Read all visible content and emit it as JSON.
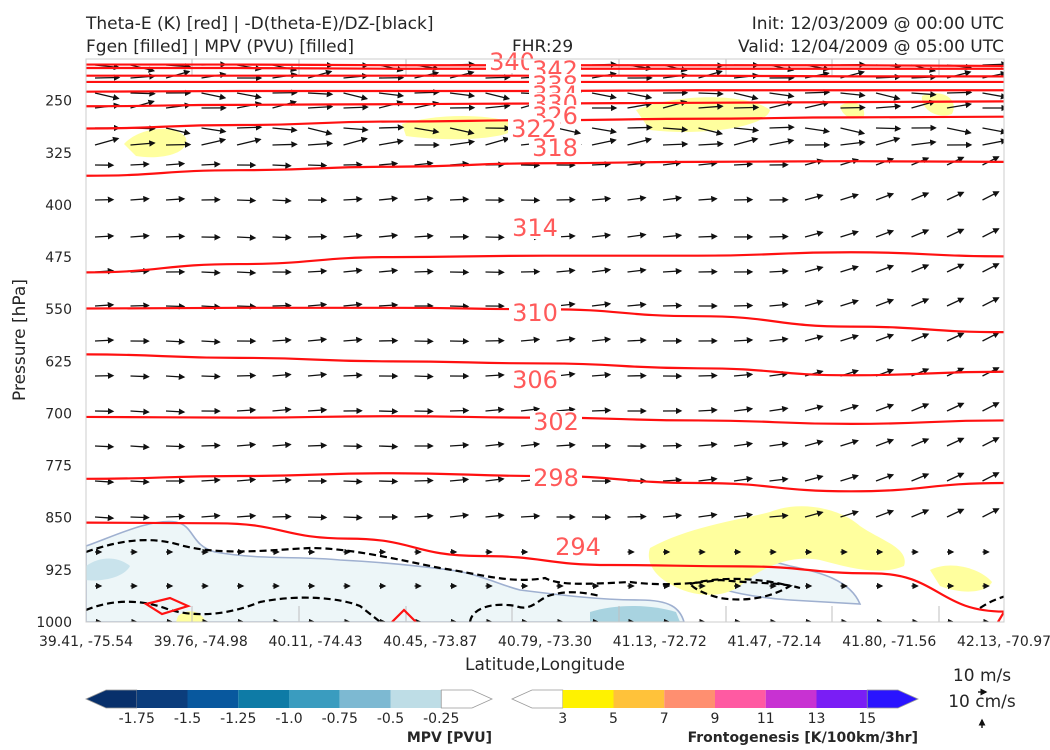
{
  "header": {
    "title_line1": "Theta-E (K) [red] | -D(theta-E)/DZ-[black]",
    "title_line2": "Fgen [filled] | MPV (PVU) [filled]",
    "fhr": "FHR:29",
    "init": "Init: 12/03/2009 @ 00:00 UTC",
    "valid": "Valid: 12/04/2009 @ 05:00 UTC"
  },
  "chart_data": {
    "type": "cross-section",
    "xlabel": "Latitude,Longitude",
    "ylabel": "Pressure [hPa]",
    "x_ticks": [
      "39.41, -75.54",
      "39.76, -74.98",
      "40.11, -74.43",
      "40.45, -73.87",
      "40.79, -73.30",
      "41.13, -72.72",
      "41.47, -72.14",
      "41.80, -71.56",
      "42.13, -70.97"
    ],
    "y_ticks": [
      250,
      325,
      400,
      475,
      550,
      625,
      700,
      775,
      850,
      925,
      1000
    ],
    "ylim": [
      1000,
      190
    ],
    "y_scale": "linear",
    "theta_e_contours": [
      {
        "label": "340",
        "pressure": [
          198,
          198,
          199,
          199,
          199,
          199,
          200
        ]
      },
      {
        "label": "342",
        "pressure": [
          203,
          203,
          204,
          204,
          204,
          204,
          204
        ]
      },
      {
        "label": "338",
        "pressure": [
          214,
          214,
          214,
          214,
          214,
          215,
          215
        ]
      },
      {
        "label": "334",
        "pressure": [
          223,
          223,
          223,
          223,
          223,
          223,
          223
        ]
      },
      {
        "label": "330",
        "pressure": [
          237,
          236,
          236,
          236,
          235,
          235,
          235
        ]
      },
      {
        "label": "326",
        "pressure": [
          258,
          256,
          255,
          254,
          253,
          252,
          251
        ]
      },
      {
        "label": "322",
        "pressure": [
          290,
          285,
          280,
          278,
          276,
          274,
          273
        ]
      },
      {
        "label": "318",
        "pressure": [
          358,
          350,
          345,
          340,
          338,
          337,
          338
        ]
      },
      {
        "label": "314",
        "pressure": [
          497,
          485,
          475,
          473,
          473,
          468,
          474
        ]
      },
      {
        "label": "310",
        "pressure": [
          549,
          548,
          548,
          550,
          560,
          575,
          583
        ]
      },
      {
        "label": "306",
        "pressure": [
          615,
          620,
          625,
          628,
          635,
          645,
          640
        ]
      },
      {
        "label": "302",
        "pressure": [
          705,
          706,
          704,
          706,
          710,
          715,
          710
        ]
      },
      {
        "label": "298",
        "pressure": [
          794,
          790,
          786,
          790,
          800,
          812,
          800
        ]
      },
      {
        "label": "294",
        "pressure": [
          857,
          858,
          880,
          905,
          918,
          920,
          930,
          985
        ]
      }
    ],
    "mpv_colorbar": {
      "title": "MPV [PVU]",
      "ticks": [
        "-1.75",
        "-1.5",
        "-1.25",
        "-1.0",
        "-0.75",
        "-0.5",
        "-0.25"
      ],
      "colors": [
        "#08306b",
        "#0b3d7c",
        "#08589e",
        "#0e7ba6",
        "#3a9cbf",
        "#7db9d2",
        "#bedde6",
        "#ffffff"
      ]
    },
    "fgen_colorbar": {
      "title": "Frontogenesis [K/100km/3hr]",
      "ticks": [
        "3",
        "5",
        "7",
        "9",
        "11",
        "13",
        "15"
      ],
      "colors": [
        "#ffffff",
        "#fff200",
        "#ffc23a",
        "#ff8f70",
        "#ff5aa2",
        "#c832d2",
        "#7a1ef5",
        "#2a14ff"
      ]
    },
    "vector_reference": {
      "horizontal": "10 m/s",
      "vertical": "10 cm/s"
    }
  }
}
